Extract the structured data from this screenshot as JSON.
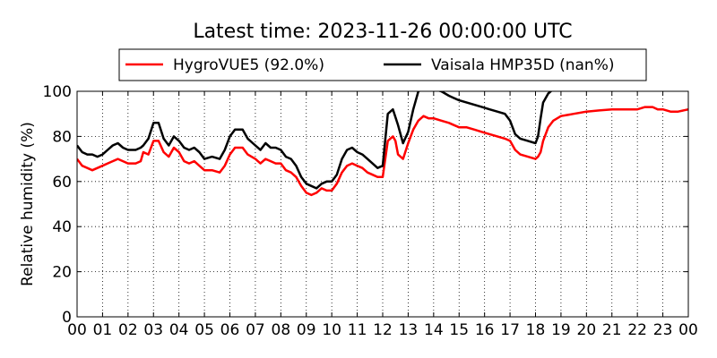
{
  "chart_data": {
    "type": "line",
    "title": "Latest time: 2023-11-26 00:00:00 UTC",
    "xlabel": "",
    "ylabel": "Relative humidity (%)",
    "xlim": [
      0,
      24
    ],
    "ylim": [
      0,
      100
    ],
    "yticks": [
      0,
      20,
      40,
      60,
      80,
      100
    ],
    "xtick_labels": [
      "00",
      "01",
      "02",
      "03",
      "04",
      "05",
      "06",
      "07",
      "08",
      "09",
      "10",
      "11",
      "12",
      "13",
      "14",
      "15",
      "16",
      "17",
      "18",
      "19",
      "20",
      "21",
      "22",
      "23",
      "00"
    ],
    "grid": true,
    "legend_position": "top",
    "series": [
      {
        "name": "HygroVUE5 (92.0%)",
        "color": "#ff0000",
        "points": [
          [
            0.0,
            70
          ],
          [
            0.2,
            67
          ],
          [
            0.4,
            66
          ],
          [
            0.6,
            65
          ],
          [
            0.8,
            66
          ],
          [
            1.0,
            67
          ],
          [
            1.2,
            68
          ],
          [
            1.4,
            69
          ],
          [
            1.6,
            70
          ],
          [
            1.8,
            69
          ],
          [
            2.0,
            68
          ],
          [
            2.3,
            68
          ],
          [
            2.5,
            69
          ],
          [
            2.6,
            73
          ],
          [
            2.8,
            72
          ],
          [
            3.0,
            78
          ],
          [
            3.2,
            78
          ],
          [
            3.4,
            73
          ],
          [
            3.6,
            71
          ],
          [
            3.8,
            75
          ],
          [
            4.0,
            73
          ],
          [
            4.2,
            69
          ],
          [
            4.4,
            68
          ],
          [
            4.6,
            69
          ],
          [
            4.8,
            67
          ],
          [
            5.0,
            65
          ],
          [
            5.3,
            65
          ],
          [
            5.6,
            64
          ],
          [
            5.8,
            67
          ],
          [
            6.0,
            72
          ],
          [
            6.2,
            75
          ],
          [
            6.5,
            75
          ],
          [
            6.7,
            72
          ],
          [
            7.0,
            70
          ],
          [
            7.2,
            68
          ],
          [
            7.4,
            70
          ],
          [
            7.6,
            69
          ],
          [
            7.8,
            68
          ],
          [
            8.0,
            68
          ],
          [
            8.2,
            65
          ],
          [
            8.4,
            64
          ],
          [
            8.6,
            62
          ],
          [
            8.8,
            58
          ],
          [
            9.0,
            55
          ],
          [
            9.2,
            54
          ],
          [
            9.4,
            55
          ],
          [
            9.6,
            57
          ],
          [
            9.8,
            56
          ],
          [
            10.0,
            56
          ],
          [
            10.2,
            59
          ],
          [
            10.4,
            64
          ],
          [
            10.6,
            67
          ],
          [
            10.8,
            68
          ],
          [
            11.0,
            67
          ],
          [
            11.2,
            66
          ],
          [
            11.4,
            64
          ],
          [
            11.6,
            63
          ],
          [
            11.8,
            62
          ],
          [
            12.0,
            62
          ],
          [
            12.2,
            78
          ],
          [
            12.4,
            80
          ],
          [
            12.5,
            78
          ],
          [
            12.6,
            72
          ],
          [
            12.8,
            70
          ],
          [
            13.0,
            77
          ],
          [
            13.2,
            83
          ],
          [
            13.4,
            87
          ],
          [
            13.6,
            89
          ],
          [
            13.8,
            88
          ],
          [
            14.0,
            88
          ],
          [
            14.3,
            87
          ],
          [
            14.6,
            86
          ],
          [
            14.8,
            85
          ],
          [
            15.0,
            84
          ],
          [
            15.3,
            84
          ],
          [
            15.6,
            83
          ],
          [
            15.9,
            82
          ],
          [
            16.2,
            81
          ],
          [
            16.5,
            80
          ],
          [
            16.8,
            79
          ],
          [
            17.0,
            78
          ],
          [
            17.2,
            74
          ],
          [
            17.4,
            72
          ],
          [
            17.7,
            71
          ],
          [
            18.0,
            70
          ],
          [
            18.1,
            71
          ],
          [
            18.2,
            73
          ],
          [
            18.3,
            78
          ],
          [
            18.5,
            84
          ],
          [
            18.7,
            87
          ],
          [
            19.0,
            89
          ],
          [
            19.5,
            90
          ],
          [
            20.0,
            91
          ],
          [
            20.5,
            91.5
          ],
          [
            21.0,
            92
          ],
          [
            21.5,
            92
          ],
          [
            22.0,
            92
          ],
          [
            22.3,
            93
          ],
          [
            22.6,
            93
          ],
          [
            22.8,
            92
          ],
          [
            23.0,
            92
          ],
          [
            23.3,
            91
          ],
          [
            23.6,
            91
          ],
          [
            24.0,
            92
          ]
        ]
      },
      {
        "name": "Vaisala HMP35D (nan%)",
        "color": "#000000",
        "points": [
          [
            0.0,
            76
          ],
          [
            0.2,
            73
          ],
          [
            0.4,
            72
          ],
          [
            0.6,
            72
          ],
          [
            0.8,
            71
          ],
          [
            1.0,
            72
          ],
          [
            1.2,
            74
          ],
          [
            1.4,
            76
          ],
          [
            1.6,
            77
          ],
          [
            1.8,
            75
          ],
          [
            2.0,
            74
          ],
          [
            2.3,
            74
          ],
          [
            2.5,
            75
          ],
          [
            2.6,
            76
          ],
          [
            2.8,
            79
          ],
          [
            3.0,
            86
          ],
          [
            3.2,
            86
          ],
          [
            3.4,
            79
          ],
          [
            3.6,
            76
          ],
          [
            3.8,
            80
          ],
          [
            4.0,
            78
          ],
          [
            4.2,
            75
          ],
          [
            4.4,
            74
          ],
          [
            4.6,
            75
          ],
          [
            4.8,
            73
          ],
          [
            5.0,
            70
          ],
          [
            5.3,
            71
          ],
          [
            5.6,
            70
          ],
          [
            5.8,
            74
          ],
          [
            6.0,
            80
          ],
          [
            6.2,
            83
          ],
          [
            6.5,
            83
          ],
          [
            6.7,
            79
          ],
          [
            7.0,
            76
          ],
          [
            7.2,
            74
          ],
          [
            7.4,
            77
          ],
          [
            7.6,
            75
          ],
          [
            7.8,
            75
          ],
          [
            8.0,
            74
          ],
          [
            8.2,
            71
          ],
          [
            8.4,
            70
          ],
          [
            8.6,
            67
          ],
          [
            8.8,
            62
          ],
          [
            9.0,
            59
          ],
          [
            9.2,
            58
          ],
          [
            9.4,
            57
          ],
          [
            9.6,
            59
          ],
          [
            9.8,
            60
          ],
          [
            10.0,
            60
          ],
          [
            10.2,
            63
          ],
          [
            10.4,
            70
          ],
          [
            10.6,
            74
          ],
          [
            10.8,
            75
          ],
          [
            11.0,
            73
          ],
          [
            11.2,
            72
          ],
          [
            11.4,
            70
          ],
          [
            11.6,
            68
          ],
          [
            11.8,
            66
          ],
          [
            12.0,
            67
          ],
          [
            12.2,
            90
          ],
          [
            12.4,
            92
          ],
          [
            12.6,
            85
          ],
          [
            12.8,
            77
          ],
          [
            13.0,
            82
          ],
          [
            13.2,
            92
          ],
          [
            13.4,
            100
          ],
          [
            13.6,
            101
          ],
          [
            13.8,
            102
          ],
          [
            14.0,
            101
          ],
          [
            14.3,
            100
          ],
          [
            14.6,
            98
          ],
          [
            14.8,
            97
          ],
          [
            15.0,
            96
          ],
          [
            15.3,
            95
          ],
          [
            15.6,
            94
          ],
          [
            15.9,
            93
          ],
          [
            16.2,
            92
          ],
          [
            16.5,
            91
          ],
          [
            16.8,
            90
          ],
          [
            17.0,
            87
          ],
          [
            17.2,
            81
          ],
          [
            17.4,
            79
          ],
          [
            17.7,
            78
          ],
          [
            18.0,
            77
          ],
          [
            18.1,
            80
          ],
          [
            18.2,
            88
          ],
          [
            18.3,
            95
          ],
          [
            18.5,
            99
          ],
          [
            18.7,
            101
          ],
          [
            19.0,
            102
          ]
        ]
      }
    ]
  }
}
